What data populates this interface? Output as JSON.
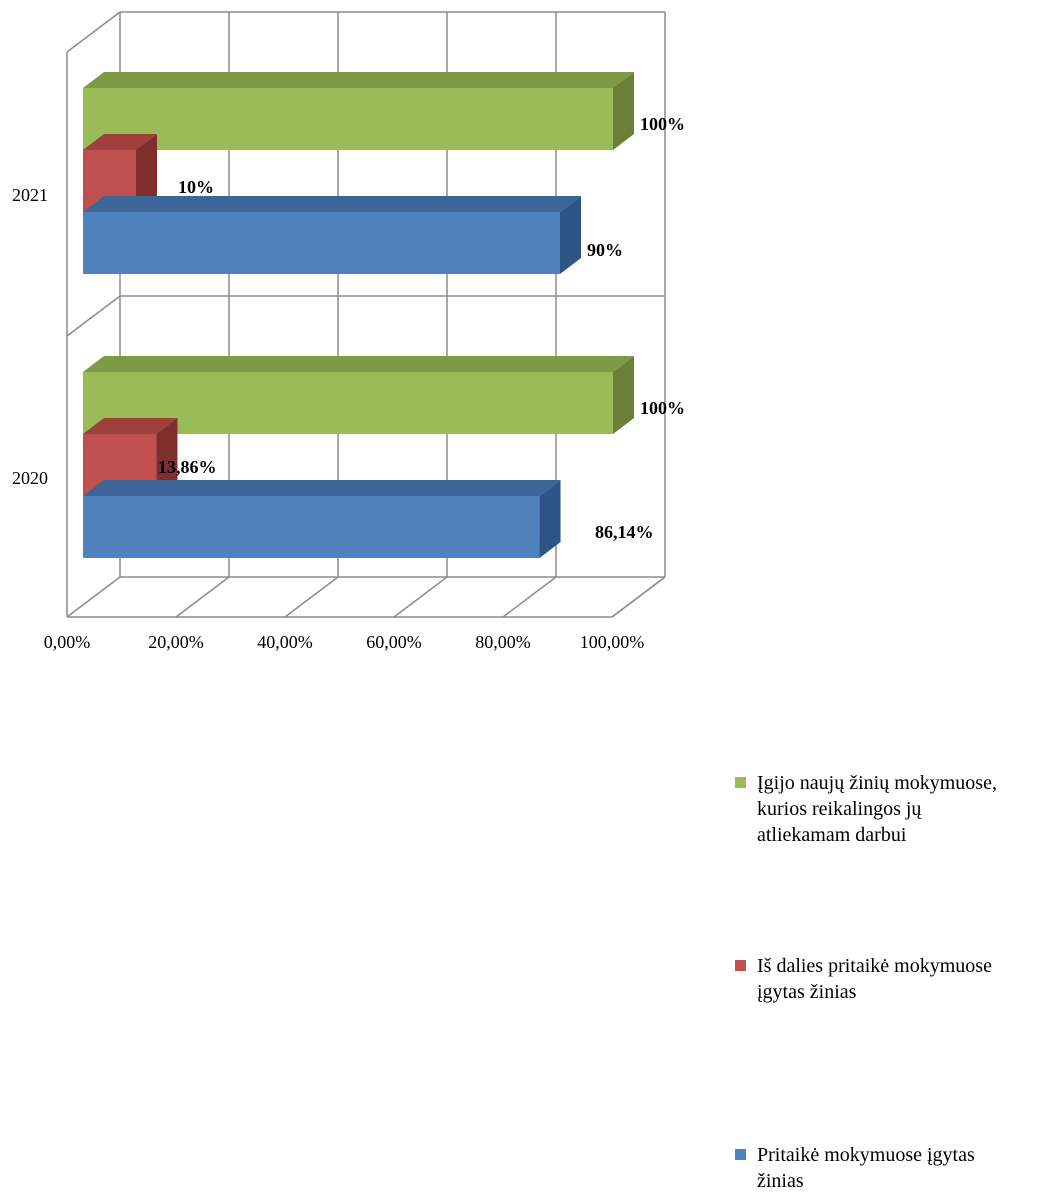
{
  "chart_data": {
    "type": "bar",
    "orientation": "horizontal",
    "style": "3d-clustered",
    "categories": [
      "2021",
      "2020"
    ],
    "x_ticks": [
      "0,00%",
      "20,00%",
      "40,00%",
      "60,00%",
      "80,00%",
      "100,00%"
    ],
    "xlim": [
      0,
      100
    ],
    "grid": true,
    "legend_position": "right",
    "series": [
      {
        "name": "Įgijo naujų žinių mokymuose, kurios reikalingos jų atliekamam darbui",
        "color": "#9BBB59",
        "values": [
          100,
          100
        ],
        "labels": [
          "100%",
          "100%"
        ]
      },
      {
        "name": "Iš dalies pritaikė mokymuose įgytas žinias",
        "color": "#C0504D",
        "values": [
          10,
          13.86
        ],
        "labels": [
          "10%",
          "13,86%"
        ]
      },
      {
        "name": "Pritaikė mokymuose įgytas žinias",
        "color": "#4F81BD",
        "values": [
          90,
          86.14
        ],
        "labels": [
          "90%",
          "86,14%"
        ]
      }
    ]
  }
}
